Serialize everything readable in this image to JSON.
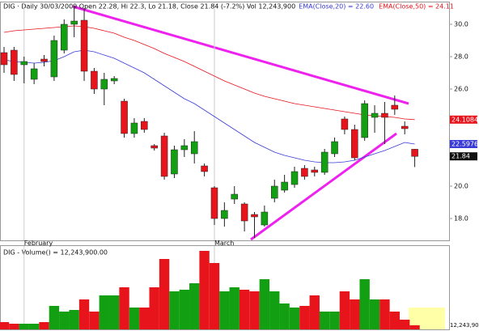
{
  "chart_data": [
    {
      "type": "candlestick",
      "title": "DIG · Daily 30/03/2009 Open 22.28, Hi 22.3, Lo 21.18, Close 21.84 (-7.2%) Vol 12,243,900",
      "categories": [
        null,
        null,
        "February",
        null,
        null,
        null,
        null,
        null,
        null,
        null,
        null,
        null,
        null,
        null,
        null,
        null,
        null,
        null,
        null,
        null,
        null,
        "March",
        null,
        null,
        null,
        null,
        null,
        null,
        null,
        null,
        null,
        null,
        null,
        null,
        null,
        null,
        null,
        null,
        null,
        null,
        null,
        null
      ],
      "open": [
        28.25,
        28.4,
        27.5,
        26.6,
        27.85,
        26.75,
        28.4,
        30.0,
        30.25,
        27.1,
        26.0,
        26.5,
        25.25,
        23.25,
        24.0,
        22.5,
        23.1,
        20.75,
        22.25,
        22.0,
        21.25,
        19.9,
        18.0,
        19.2,
        18.9,
        18.25,
        17.6,
        19.25,
        19.75,
        20.1,
        21.1,
        21.0,
        20.85,
        22.0,
        24.15,
        23.5,
        23.0,
        24.25,
        24.5,
        25.0,
        23.7,
        22.28
      ],
      "high": [
        28.6,
        28.6,
        28.0,
        27.6,
        28.1,
        29.3,
        30.3,
        31.1,
        31.0,
        27.3,
        27.0,
        26.8,
        25.4,
        24.2,
        24.2,
        22.6,
        23.3,
        22.5,
        22.9,
        23.4,
        21.4,
        20.0,
        19.0,
        20.0,
        19.0,
        18.4,
        18.8,
        20.4,
        20.7,
        21.2,
        21.3,
        21.2,
        22.3,
        23.0,
        24.3,
        23.8,
        25.3,
        25.0,
        25.2,
        25.6,
        24.0,
        22.3
      ],
      "low": [
        27.0,
        26.5,
        26.35,
        26.3,
        27.4,
        26.5,
        28.2,
        29.2,
        26.5,
        25.7,
        25.0,
        26.3,
        23.0,
        23.0,
        23.3,
        22.2,
        20.4,
        20.5,
        21.8,
        21.4,
        20.6,
        17.6,
        17.5,
        18.9,
        17.2,
        16.8,
        17.5,
        19.0,
        19.6,
        19.9,
        20.4,
        20.6,
        20.7,
        21.8,
        23.2,
        21.6,
        22.8,
        23.3,
        22.6,
        24.4,
        23.2,
        21.18
      ],
      "close": [
        27.5,
        26.9,
        27.7,
        27.25,
        27.7,
        29.0,
        30.0,
        30.2,
        27.1,
        26.0,
        26.6,
        26.65,
        23.25,
        23.9,
        23.5,
        22.35,
        20.6,
        22.25,
        22.5,
        22.75,
        20.9,
        18.0,
        18.5,
        19.5,
        17.85,
        18.1,
        18.4,
        20.0,
        20.25,
        20.9,
        20.6,
        20.85,
        22.1,
        22.75,
        23.5,
        21.75,
        25.1,
        24.5,
        24.25,
        24.75,
        23.55,
        21.84
      ],
      "up_color": "#12a012",
      "down_color": "#e8141c",
      "series": [
        {
          "name": "EMA(Close,20) = 22.60",
          "color": "#3a3ad6",
          "last_label": "22.5976",
          "values": [
            27.8,
            27.7,
            27.65,
            27.6,
            27.65,
            27.75,
            28.0,
            28.3,
            28.4,
            28.3,
            28.1,
            27.9,
            27.6,
            27.3,
            27.0,
            26.6,
            26.2,
            25.8,
            25.4,
            25.1,
            24.7,
            24.3,
            23.9,
            23.5,
            23.1,
            22.7,
            22.4,
            22.1,
            21.9,
            21.75,
            21.6,
            21.5,
            21.45,
            21.45,
            21.5,
            21.6,
            21.8,
            22.0,
            22.2,
            22.45,
            22.7,
            22.6
          ]
        },
        {
          "name": "EMA(Close,50) = 24.11",
          "color": "#e8141c",
          "last_label": "24.1084",
          "values": [
            29.5,
            29.6,
            29.65,
            29.7,
            29.75,
            29.8,
            29.85,
            29.9,
            29.85,
            29.75,
            29.6,
            29.45,
            29.2,
            29.0,
            28.75,
            28.5,
            28.2,
            27.95,
            27.7,
            27.4,
            27.1,
            26.8,
            26.5,
            26.25,
            26.0,
            25.75,
            25.55,
            25.4,
            25.25,
            25.1,
            25.0,
            24.9,
            24.8,
            24.7,
            24.6,
            24.5,
            24.4,
            24.35,
            24.3,
            24.25,
            24.15,
            24.11
          ]
        }
      ],
      "close_label": "21.84",
      "ylim": [
        16.65,
        31.1
      ],
      "yticks": [
        {
          "value": 18,
          "label": "18.0"
        },
        {
          "value": 20,
          "label": "20.0"
        },
        {
          "value": 26,
          "label": "26.0"
        },
        {
          "value": 28,
          "label": "28.0"
        },
        {
          "value": 30,
          "label": "30.0"
        }
      ]
    },
    {
      "type": "bar",
      "title": "DIG - Volume() = 12,243,900.00",
      "values": [
        21600000,
        16800000,
        16800000,
        16800000,
        21600000,
        69600000,
        52800000,
        57600000,
        88800000,
        52800000,
        100800000,
        100800000,
        124800000,
        64800000,
        64800000,
        124800000,
        208800000,
        112800000,
        117600000,
        136800000,
        232800000,
        196800000,
        112800000,
        124800000,
        117600000,
        112800000,
        148800000,
        112800000,
        76800000,
        64800000,
        69600000,
        100800000,
        52800000,
        52800000,
        112800000,
        88800000,
        148800000,
        88800000,
        88800000,
        52800000,
        28800000,
        12243900
      ],
      "last_label": "12,243,900",
      "ylim": [
        0,
        240000000
      ]
    }
  ]
}
